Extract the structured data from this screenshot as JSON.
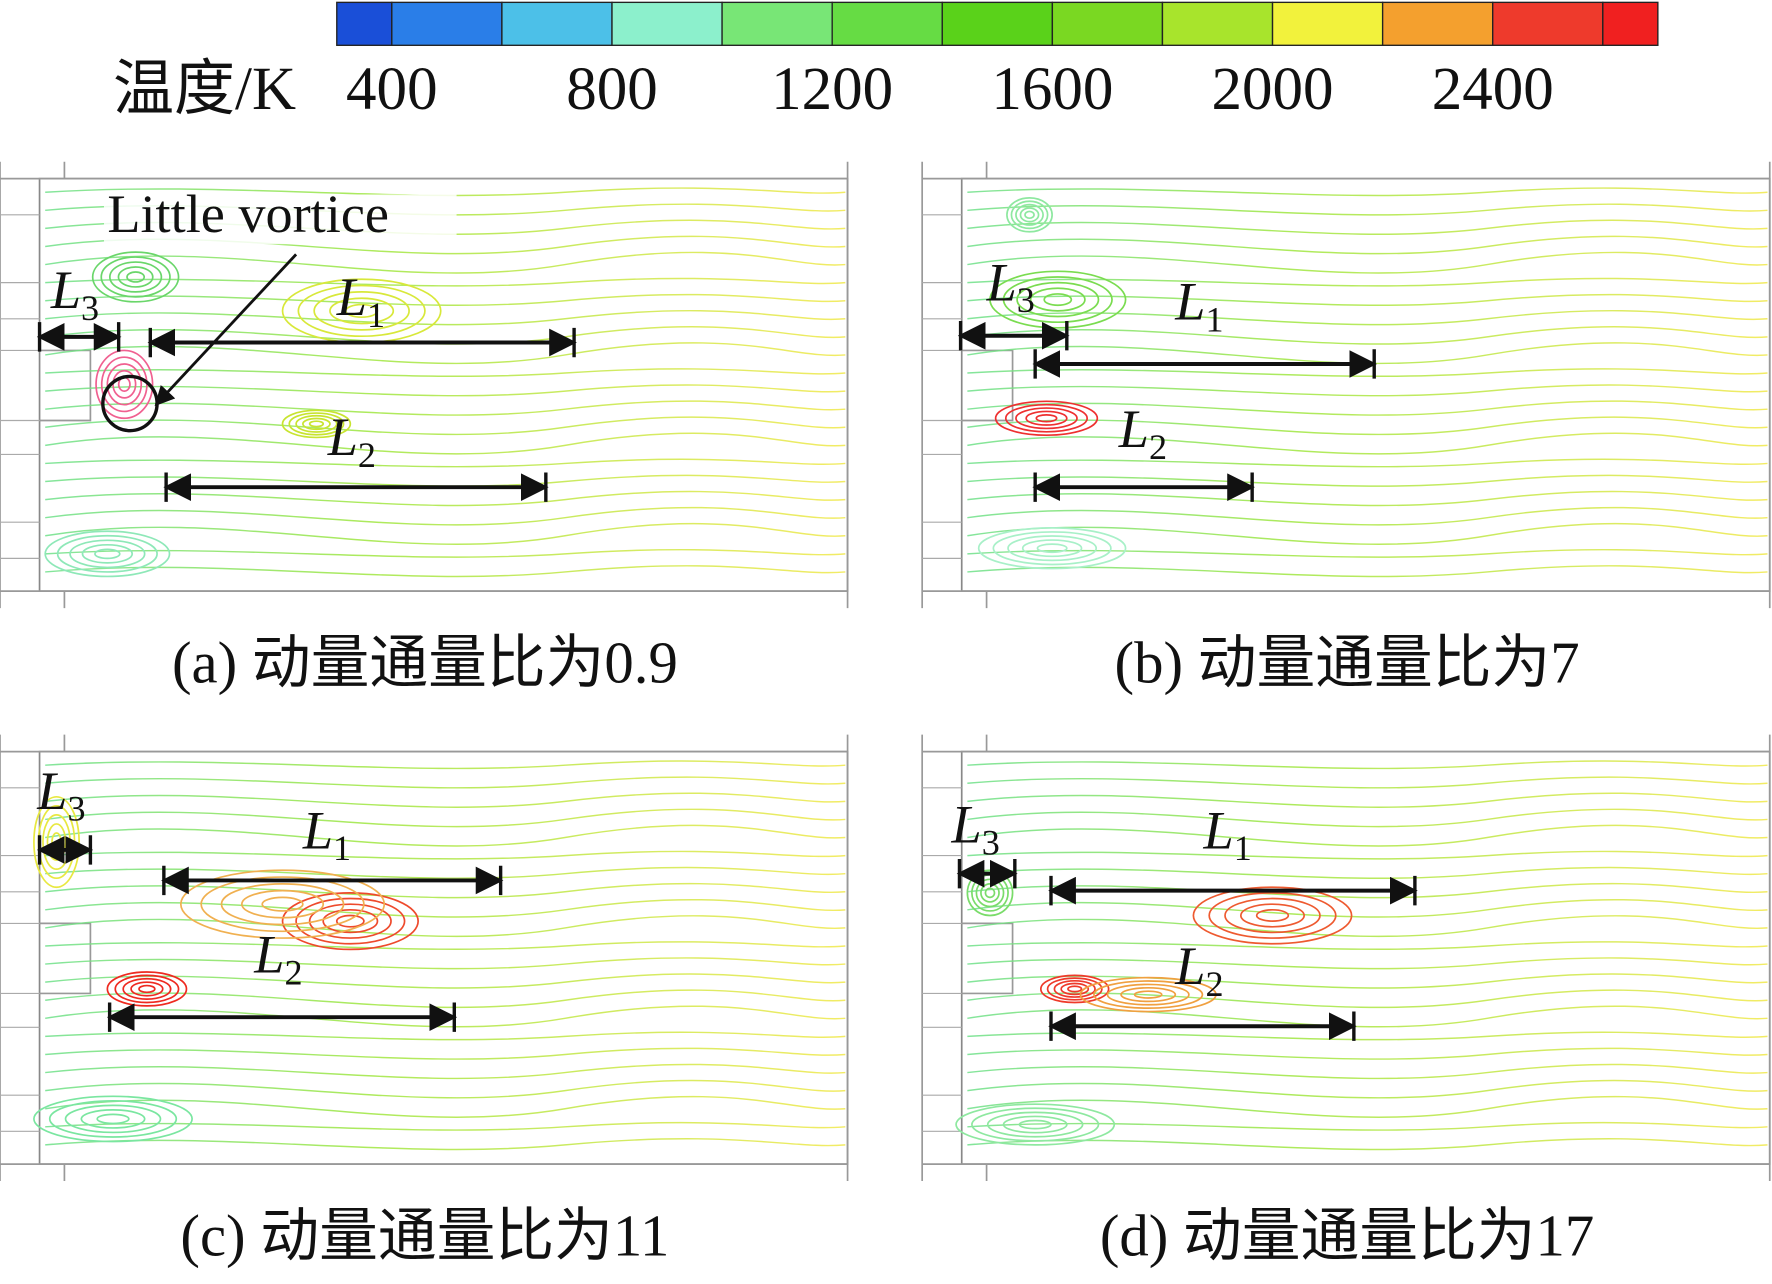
{
  "colorbar": {
    "label": "温度/K",
    "range": [
      300,
      2700
    ],
    "ticks": [
      400,
      800,
      1200,
      1600,
      2000,
      2400
    ],
    "bounds": [
      300,
      400,
      600,
      800,
      1000,
      1200,
      1400,
      1600,
      1800,
      2000,
      2200,
      2400,
      2600,
      2700
    ],
    "colors": [
      "#1a4fd8",
      "#2a7ee8",
      "#4cc0e8",
      "#8cf0cc",
      "#78e676",
      "#66dc44",
      "#5ad21a",
      "#7ad822",
      "#a8e42c",
      "#f2f23c",
      "#f4a02e",
      "#ee3a2c",
      "#f02020"
    ]
  },
  "panels": [
    {
      "caption": "(a) 动量通量比为0.9",
      "annotation": "Little vortice",
      "labels": [
        {
          "text": "L",
          "subscript": "1"
        },
        {
          "text": "L",
          "subscript": "2"
        },
        {
          "text": "L",
          "subscript": "3"
        }
      ]
    },
    {
      "caption": "(b) 动量通量比为7",
      "labels": [
        {
          "text": "L",
          "subscript": "1"
        },
        {
          "text": "L",
          "subscript": "2"
        },
        {
          "text": "L",
          "subscript": "3"
        }
      ]
    },
    {
      "caption": "(c) 动量通量比为11",
      "labels": [
        {
          "text": "L",
          "subscript": "1"
        },
        {
          "text": "L",
          "subscript": "2"
        },
        {
          "text": "L",
          "subscript": "3"
        }
      ]
    },
    {
      "caption": "(d) 动量通量比为17",
      "labels": [
        {
          "text": "L",
          "subscript": "1"
        },
        {
          "text": "L",
          "subscript": "2"
        },
        {
          "text": "L",
          "subscript": "3"
        }
      ]
    }
  ]
}
